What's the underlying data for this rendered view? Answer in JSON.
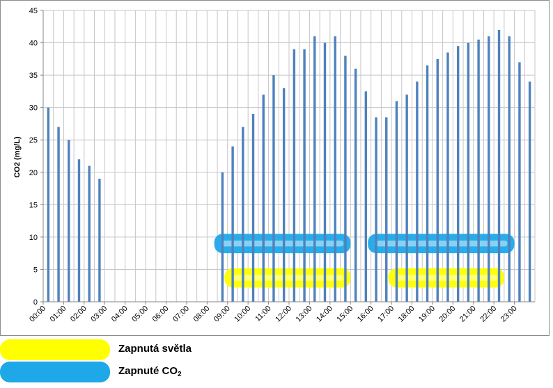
{
  "chart_data": {
    "type": "bar",
    "ylabel": "CO2 (mg/L)",
    "xlabel": "",
    "ylim": [
      0,
      45
    ],
    "yticks": [
      0,
      5,
      10,
      15,
      20,
      25,
      30,
      35,
      40,
      45
    ],
    "grid": true,
    "tick_labels": [
      "00:00",
      "01:00",
      "02:00",
      "03:00",
      "04:00",
      "05:00",
      "06:00",
      "07:00",
      "08:00",
      "09:00",
      "10:00",
      "11:00",
      "12:00",
      "13:00",
      "14:00",
      "15:00",
      "16:00",
      "17:00",
      "18:00",
      "19:00",
      "20:00",
      "21:00",
      "22:00",
      "23:00"
    ],
    "categories": [
      "00:00",
      "00:30",
      "01:00",
      "01:30",
      "02:00",
      "02:30",
      "03:00",
      "03:30",
      "04:00",
      "04:30",
      "05:00",
      "05:30",
      "06:00",
      "06:30",
      "07:00",
      "07:30",
      "08:00",
      "08:30",
      "09:00",
      "09:30",
      "10:00",
      "10:30",
      "11:00",
      "11:30",
      "12:00",
      "12:30",
      "13:00",
      "13:30",
      "14:00",
      "14:30",
      "15:00",
      "15:30",
      "16:00",
      "16:30",
      "17:00",
      "17:30",
      "18:00",
      "18:30",
      "19:00",
      "19:30",
      "20:00",
      "20:30",
      "21:00",
      "21:30",
      "22:00",
      "22:30",
      "23:00",
      "23:30"
    ],
    "values": [
      30,
      27,
      25,
      22,
      21,
      19,
      0,
      0,
      0,
      0,
      0,
      0,
      0,
      0,
      0,
      0,
      0,
      20,
      24,
      27,
      29,
      32,
      35,
      33,
      39,
      39,
      41,
      40,
      41,
      38,
      36,
      32.5,
      28.5,
      28.5,
      31,
      32,
      34,
      36.5,
      37.5,
      38.5,
      39.5,
      40,
      40.5,
      41,
      42,
      41,
      37,
      34
    ],
    "bar_color": "#4f81bd",
    "legend": [
      {
        "label": "Zapnutá světla",
        "color": "#ffff00"
      },
      {
        "label": "Zapnuté CO",
        "subscript": "2",
        "color": "#1ea8e8"
      }
    ],
    "highlight_ranges": [
      {
        "type": "co2",
        "from": "08:30",
        "to": "14:30",
        "y_from": 7.5,
        "y_to": 10.5,
        "color": "#1ea8e8"
      },
      {
        "type": "co2",
        "from": "16:00",
        "to": "22:30",
        "y_from": 7.5,
        "y_to": 10.5,
        "color": "#1ea8e8"
      },
      {
        "type": "light",
        "from": "09:00",
        "to": "14:30",
        "y_from": 2.2,
        "y_to": 5.2,
        "color": "#ffff00"
      },
      {
        "type": "light",
        "from": "17:00",
        "to": "22:00",
        "y_from": 2.2,
        "y_to": 5.2,
        "color": "#ffff00"
      }
    ]
  }
}
